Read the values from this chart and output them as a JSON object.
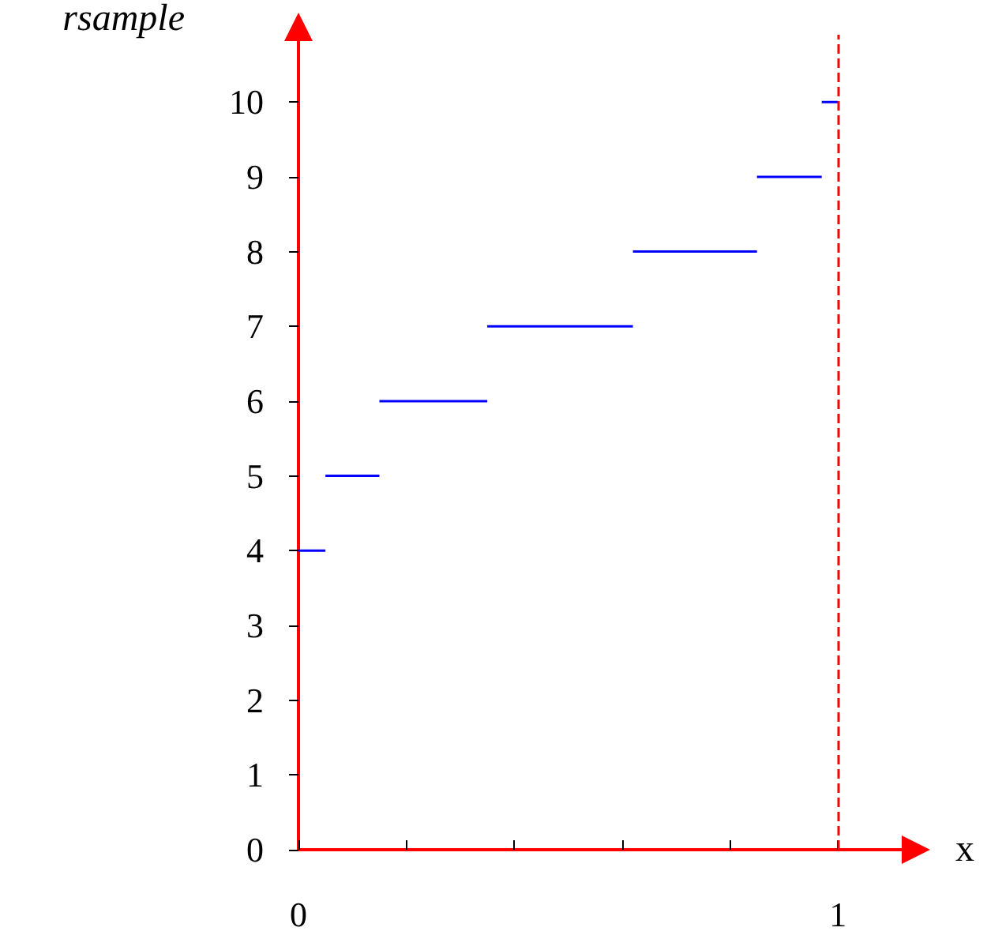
{
  "chart_data": {
    "type": "line",
    "ylabel": "rsample",
    "xlabel": "x",
    "series": [
      {
        "color": "#0000ff",
        "x": [
          0,
          0.05
        ],
        "values": [
          4,
          4
        ]
      },
      {
        "color": "#0000ff",
        "x": [
          0.05,
          0.15
        ],
        "values": [
          5,
          5
        ]
      },
      {
        "color": "#0000ff",
        "x": [
          0.15,
          0.35
        ],
        "values": [
          6,
          6
        ]
      },
      {
        "color": "#0000ff",
        "x": [
          0.35,
          0.62
        ],
        "values": [
          7,
          7
        ]
      },
      {
        "color": "#0000ff",
        "x": [
          0.62,
          0.85
        ],
        "values": [
          8,
          8
        ]
      },
      {
        "color": "#0000ff",
        "x": [
          0.85,
          0.97
        ],
        "values": [
          9,
          9
        ]
      },
      {
        "color": "#0000ff",
        "x": [
          0.97,
          1
        ],
        "values": [
          10,
          10
        ]
      }
    ],
    "xlim": [
      0,
      1.13
    ],
    "ylim": [
      0,
      10.9
    ],
    "xticks": [
      0,
      {
        "value": 0.2,
        "label": null
      },
      {
        "value": 0.4,
        "label": null
      },
      {
        "value": 0.6,
        "label": null
      },
      {
        "value": 0.8,
        "label": null
      },
      1
    ],
    "yticks": [
      0,
      1,
      2,
      3,
      4,
      5,
      6,
      7,
      8,
      9,
      10
    ],
    "ref_lines": [
      {
        "axis": "x",
        "value": 1,
        "color": "#ff0000",
        "line_style": "dashed"
      }
    ],
    "grid": false,
    "marker": "none",
    "line_style": "solid"
  }
}
